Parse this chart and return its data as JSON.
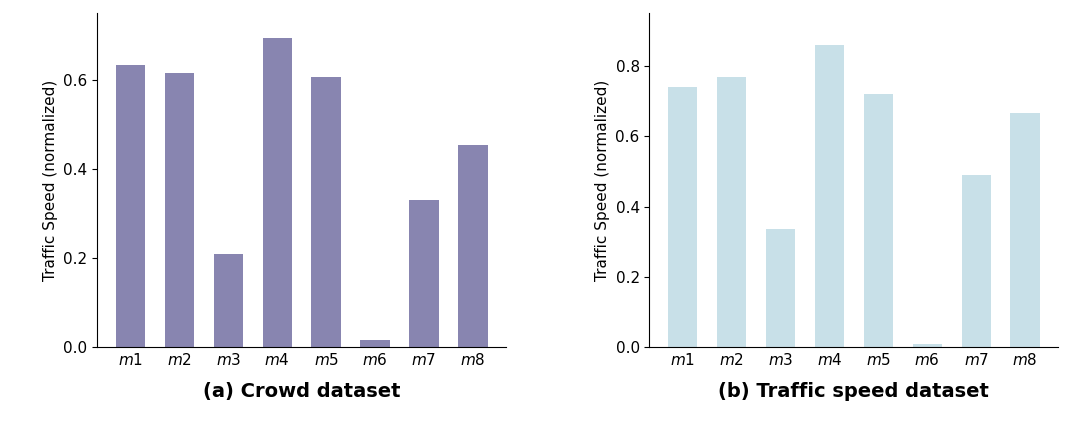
{
  "categories": [
    "m1",
    "m2",
    "m3",
    "m4",
    "m5",
    "m6",
    "m7",
    "m8"
  ],
  "values_a": [
    0.635,
    0.615,
    0.21,
    0.695,
    0.608,
    0.015,
    0.33,
    0.455
  ],
  "values_b": [
    0.74,
    0.77,
    0.335,
    0.86,
    0.72,
    0.01,
    0.49,
    0.665
  ],
  "color_a": "#8885b0",
  "color_b": "#c8e0e8",
  "ylabel": "Traffic Speed (normalized)",
  "xlabel_a": "(a) Crowd dataset",
  "xlabel_b": "(b) Traffic speed dataset",
  "ylim_a": [
    0,
    0.75
  ],
  "ylim_b": [
    0,
    0.95
  ],
  "yticks_a": [
    0.0,
    0.2,
    0.4,
    0.6
  ],
  "yticks_b": [
    0.0,
    0.2,
    0.4,
    0.6,
    0.8
  ],
  "background_color": "#ffffff",
  "ylabel_fontsize": 11,
  "tick_fontsize": 11,
  "xlabel_label_fontsize": 14
}
